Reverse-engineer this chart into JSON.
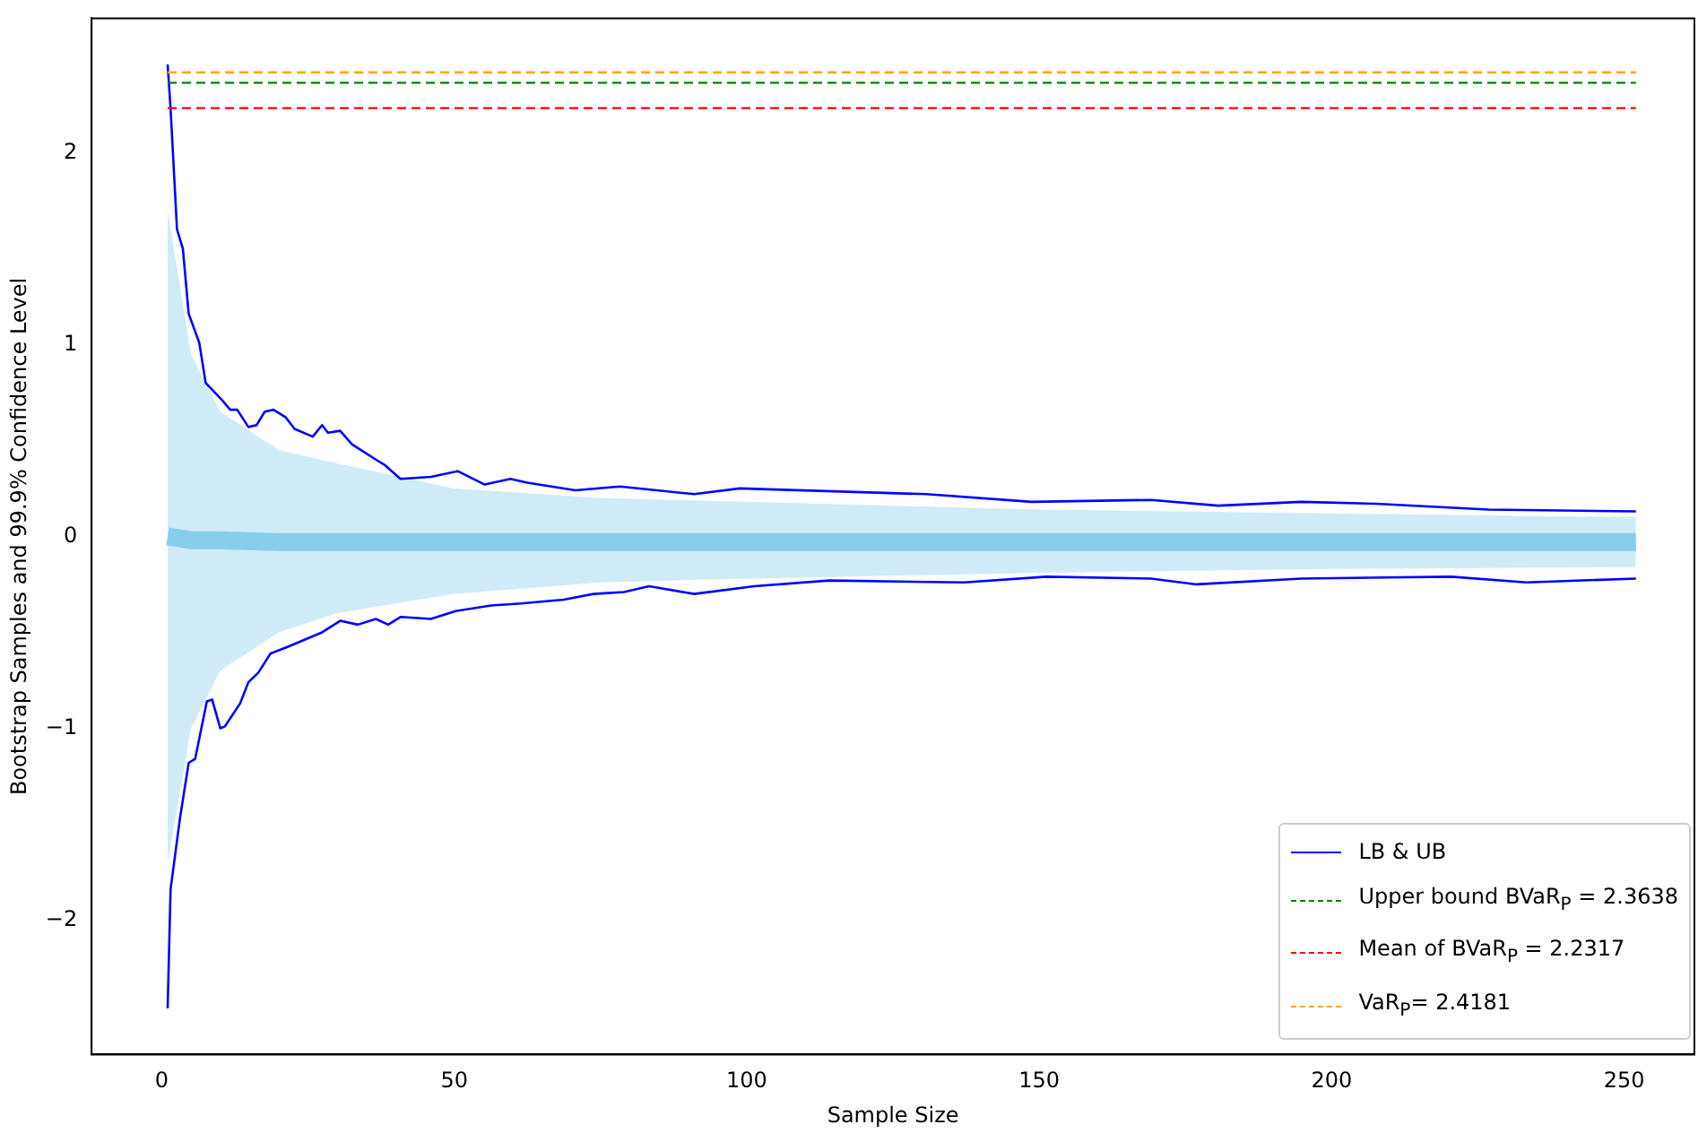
{
  "chart_data": {
    "type": "line",
    "xlabel": "Sample Size",
    "ylabel": "Bootstrap Samples and 99.9% Confidence Level",
    "xlim": [
      -12,
      262
    ],
    "xticks": [
      0,
      50,
      100,
      150,
      200,
      250
    ],
    "ylim": [
      -2.7,
      2.7
    ],
    "yticks": [
      {
        "value": -2,
        "label": "−2"
      },
      {
        "value": -1,
        "label": "−1"
      },
      0,
      1,
      2
    ],
    "grid": false,
    "legend": "bottom right",
    "line_style": "solid",
    "marker": "none",
    "series": [
      {
        "color": "#87ceeb",
        "x": [
          1,
          5,
          10,
          20,
          30,
          50,
          75,
          100,
          150,
          200,
          252
        ],
        "values": [
          0,
          -0.02,
          -0.02,
          -0.03,
          -0.03,
          -0.03,
          -0.03,
          -0.03,
          -0.03,
          -0.03,
          -0.03
        ],
        "lower": [
          -1.7,
          -1.0,
          -0.7,
          -0.5,
          -0.4,
          -0.3,
          -0.24,
          -0.22,
          -0.19,
          -0.17,
          -0.16
        ],
        "upper": [
          1.7,
          0.95,
          0.65,
          0.45,
          0.38,
          0.25,
          0.2,
          0.18,
          0.14,
          0.12,
          0.1
        ]
      },
      {
        "name": "LB & UB",
        "color": "#0000ff",
        "x": [
          1,
          1.5,
          2.6,
          3.6,
          4.6,
          6.4,
          7.5,
          10.3,
          11.7,
          12.9,
          14.8,
          16.2,
          17.6,
          19.1,
          21.2,
          22.7,
          25.8,
          27.4,
          28.4,
          30.5,
          32.5,
          36.6,
          38.2,
          40.8,
          46,
          50.6,
          55.2,
          59.6,
          62.5,
          70.7,
          78.3,
          91,
          98.8,
          130.7,
          148.7,
          169.1,
          180.6,
          194.8,
          207.6,
          226.8,
          252
        ],
        "values": [
          2.46,
          2.23,
          1.6,
          1.5,
          1.16,
          1.01,
          0.8,
          0.71,
          0.66,
          0.66,
          0.57,
          0.58,
          0.65,
          0.66,
          0.62,
          0.56,
          0.52,
          0.58,
          0.54,
          0.55,
          0.48,
          0.4,
          0.37,
          0.3,
          0.31,
          0.34,
          0.27,
          0.3,
          0.28,
          0.24,
          0.26,
          0.22,
          0.25,
          0.22,
          0.18,
          0.19,
          0.16,
          0.18,
          0.17,
          0.14,
          0.13
        ]
      },
      {
        "color": "#0000ff",
        "x": [
          1,
          1.5,
          3.1,
          4.6,
          5.7,
          7.7,
          8.6,
          10,
          10.8,
          13.4,
          14.8,
          16.5,
          18.6,
          21.2,
          27.4,
          30.5,
          33.5,
          36.6,
          38.7,
          40.8,
          46,
          50.1,
          56.3,
          61.4,
          68.7,
          73.8,
          79,
          83.3,
          91,
          101.3,
          114.1,
          137.2,
          151.2,
          169.1,
          176.9,
          194.8,
          220.4,
          233.3,
          252
        ],
        "values": [
          -2.46,
          -1.84,
          -1.47,
          -1.18,
          -1.16,
          -0.86,
          -0.85,
          -1.0,
          -0.99,
          -0.87,
          -0.76,
          -0.71,
          -0.61,
          -0.58,
          -0.5,
          -0.44,
          -0.46,
          -0.43,
          -0.46,
          -0.42,
          -0.43,
          -0.39,
          -0.36,
          -0.35,
          -0.33,
          -0.3,
          -0.29,
          -0.26,
          -0.3,
          -0.26,
          -0.23,
          -0.24,
          -0.21,
          -0.22,
          -0.25,
          -0.22,
          -0.21,
          -0.24,
          -0.22
        ]
      }
    ],
    "ref_lines": [
      {
        "axis": "y",
        "value": 2.3638,
        "label": "Upper bound BVaR$_{P}$ = 2.3638",
        "color": "#008000",
        "line_style": "dashed"
      },
      {
        "axis": "y",
        "value": 2.2317,
        "label": "Mean of BVaR$_{P}$ = 2.2317",
        "color": "#ff0000",
        "line_style": "dashed"
      },
      {
        "axis": "y",
        "value": 2.4181,
        "label": "VaR$_{P}$= 2.4181",
        "color": "#ffa500",
        "line_style": "dashed"
      }
    ]
  }
}
